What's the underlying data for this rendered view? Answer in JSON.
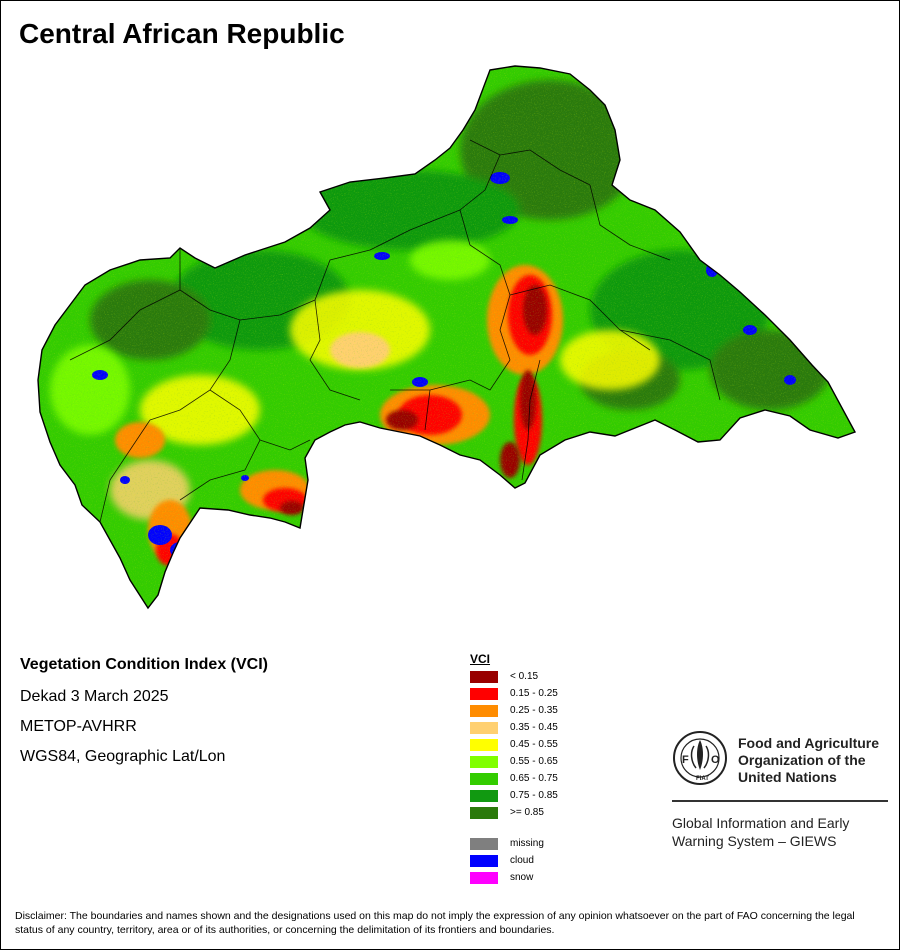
{
  "map": {
    "title": "Central African Republic"
  },
  "info": {
    "index_title": "Vegetation Condition Index (VCI)",
    "period": "Dekad 3 March 2025",
    "sensor": "METOP-AVHRR",
    "projection": "WGS84, Geographic Lat/Lon"
  },
  "legend": {
    "title": "VCI",
    "classes": [
      {
        "label": "< 0.15",
        "color": "#990000"
      },
      {
        "label": "0.15 - 0.25",
        "color": "#ff0000"
      },
      {
        "label": "0.25 - 0.35",
        "color": "#ff8c00"
      },
      {
        "label": "0.35 - 0.45",
        "color": "#ffd070"
      },
      {
        "label": "0.45 - 0.55",
        "color": "#ffff00"
      },
      {
        "label": "0.55 - 0.65",
        "color": "#80ff00"
      },
      {
        "label": "0.65 - 0.75",
        "color": "#33cc00"
      },
      {
        "label": "0.75 - 0.85",
        "color": "#119911"
      },
      {
        "label": ">= 0.85",
        "color": "#2b7a0b"
      }
    ],
    "special": [
      {
        "label": "missing",
        "color": "#7f7f7f"
      },
      {
        "label": "cloud",
        "color": "#0000ff"
      },
      {
        "label": "snow",
        "color": "#ff00ff"
      }
    ]
  },
  "organization": {
    "name": "Food and Agriculture Organization of the United Nations",
    "system": "Global Information and Early Warning System – GIEWS",
    "logo_icon": "fao-logo-icon"
  },
  "disclaimer": "Disclaimer: The boundaries and names shown and the designations used on this map do not imply the expression of any opinion whatsoever on the part of FAO concerning the legal status of any country, territory, area or of its authorities, or concerning the delimitation of its frontiers and boundaries."
}
